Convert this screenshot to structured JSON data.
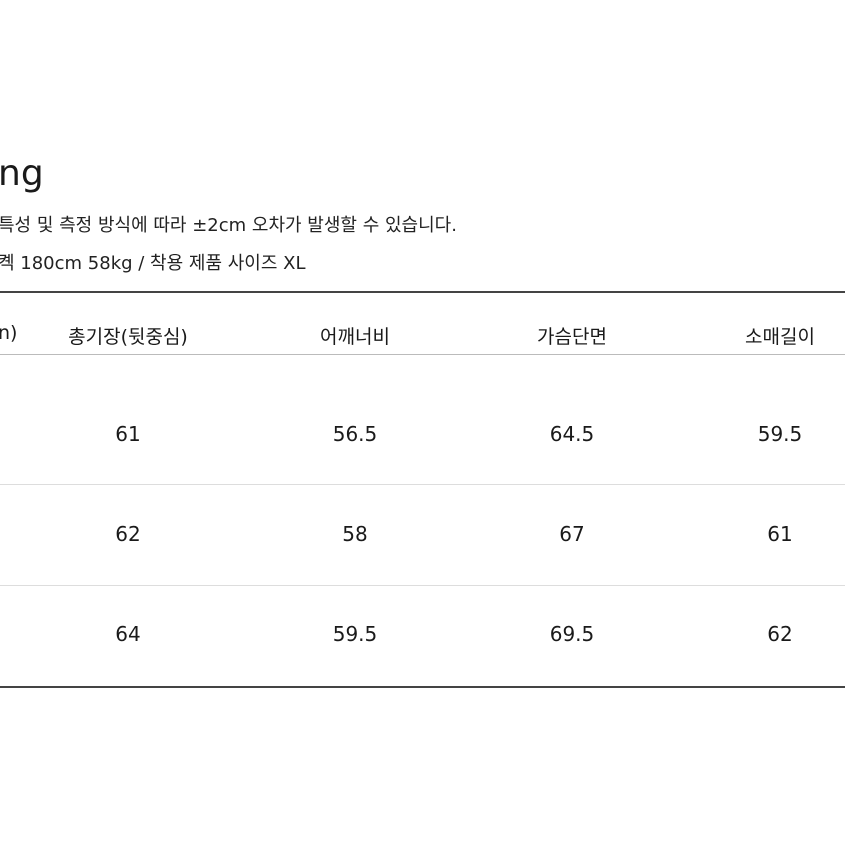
{
  "title": "ng",
  "notes": [
    "특성 및 측정 방식에 따라 ±2cm 오차가 발생할 수 있습니다.",
    "켹 180cm 58kg / 착용 제품 사이즈 XL"
  ],
  "table": {
    "headers": [
      "n)",
      "총기장(뒷중심)",
      "어깨너비",
      "가슴단면",
      "소매길이"
    ],
    "rows": [
      [
        "",
        "61",
        "56.5",
        "64.5",
        "59.5"
      ],
      [
        "",
        "62",
        "58",
        "67",
        "61"
      ],
      [
        "",
        "64",
        "59.5",
        "69.5",
        "62"
      ]
    ]
  }
}
